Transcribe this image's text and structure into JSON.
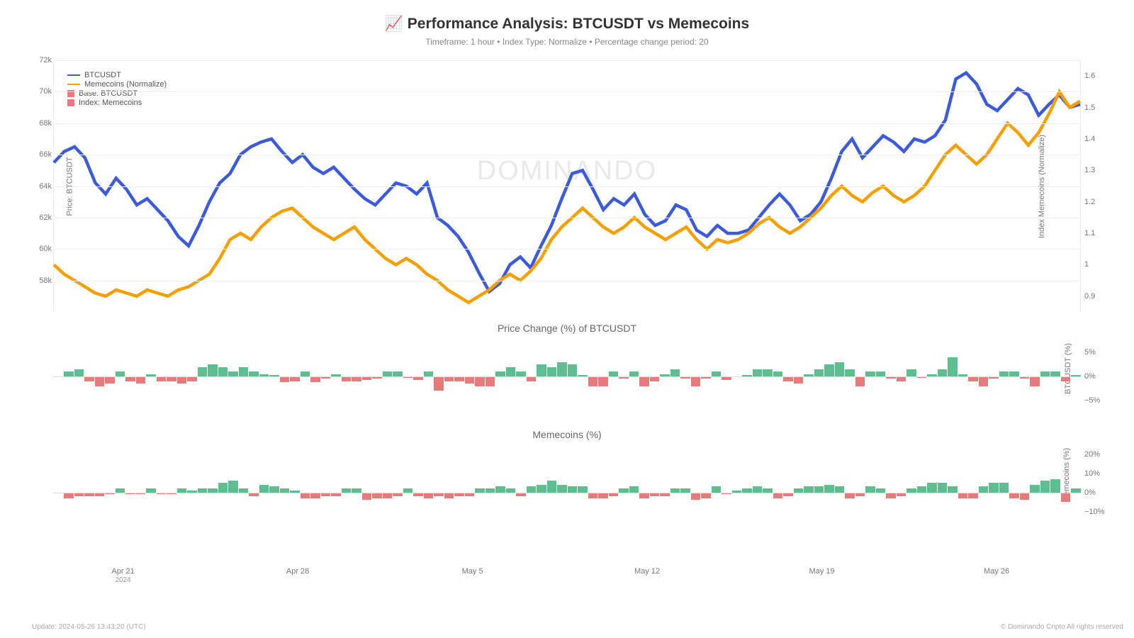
{
  "title": "📈 Performance Analysis: BTCUSDT vs Memecoins",
  "subtitle": "Timeframe: 1 hour  •  Index Type: Normalize  •  Percentage change period: 20",
  "watermark": "DOMINANDO",
  "colors": {
    "btc_line": "#3b5bdb",
    "meme_line": "#f59f00",
    "positive_bar": "#5cbf8f",
    "negative_bar": "#e77a7a",
    "grid": "#f0f0f0",
    "text": "#666666",
    "background": "#ffffff"
  },
  "main_chart": {
    "type": "line",
    "y_left": {
      "label": "Price: BTCUSDT",
      "min": 56000,
      "max": 72000,
      "ticks": [
        58000,
        60000,
        62000,
        64000,
        66000,
        68000,
        70000,
        72000
      ],
      "tick_labels": [
        "58k",
        "60k",
        "62k",
        "64k",
        "66k",
        "68k",
        "70k",
        "72k"
      ]
    },
    "y_right": {
      "label": "Index Memecoins (Normalize)",
      "min": 0.85,
      "max": 1.65,
      "ticks": [
        0.9,
        1,
        1.1,
        1.2,
        1.3,
        1.4,
        1.5,
        1.6
      ],
      "tick_labels": [
        "0.9",
        "1",
        "1.1",
        "1.2",
        "1.3",
        "1.4",
        "1.5",
        "1.6"
      ]
    },
    "legend": [
      {
        "type": "line",
        "color": "#3b5bdb",
        "label": "BTCUSDT"
      },
      {
        "type": "line",
        "color": "#f59f00",
        "label": "Memecoins (Normalize)"
      },
      {
        "type": "box",
        "color": "#e77a7a",
        "label": "Base: BTCUSDT"
      },
      {
        "type": "box",
        "color": "#e77a7a",
        "label": "Index: Memecoins"
      }
    ],
    "btc_series": [
      65500,
      66200,
      66500,
      65800,
      64200,
      63500,
      64500,
      63800,
      62800,
      63200,
      62500,
      61800,
      60800,
      60200,
      61500,
      63000,
      64200,
      64800,
      66000,
      66500,
      66800,
      67000,
      66200,
      65500,
      66000,
      65200,
      64800,
      65200,
      64500,
      63800,
      63200,
      62800,
      63500,
      64200,
      64000,
      63500,
      64200,
      62000,
      61500,
      60800,
      59800,
      58500,
      57300,
      57800,
      59000,
      59500,
      58800,
      60200,
      61500,
      63200,
      64800,
      65000,
      63800,
      62500,
      63200,
      62800,
      63500,
      62200,
      61500,
      61800,
      62800,
      62500,
      61200,
      60800,
      61500,
      61000,
      61000,
      61200,
      62000,
      62800,
      63500,
      62800,
      61800,
      62200,
      63000,
      64500,
      66200,
      67000,
      65800,
      66500,
      67200,
      66800,
      66200,
      67000,
      66800,
      67200,
      68200,
      70800,
      71200,
      70500,
      69200,
      68800,
      69500,
      70200,
      69800,
      68500,
      69200,
      69800,
      69000,
      69200
    ],
    "meme_series": [
      1.0,
      0.97,
      0.95,
      0.93,
      0.91,
      0.9,
      0.92,
      0.91,
      0.9,
      0.92,
      0.91,
      0.9,
      0.92,
      0.93,
      0.95,
      0.97,
      1.02,
      1.08,
      1.1,
      1.08,
      1.12,
      1.15,
      1.17,
      1.18,
      1.15,
      1.12,
      1.1,
      1.08,
      1.1,
      1.12,
      1.08,
      1.05,
      1.02,
      1.0,
      1.02,
      1.0,
      0.97,
      0.95,
      0.92,
      0.9,
      0.88,
      0.9,
      0.92,
      0.95,
      0.97,
      0.95,
      0.98,
      1.02,
      1.08,
      1.12,
      1.15,
      1.18,
      1.15,
      1.12,
      1.1,
      1.12,
      1.15,
      1.12,
      1.1,
      1.08,
      1.1,
      1.12,
      1.08,
      1.05,
      1.08,
      1.07,
      1.08,
      1.1,
      1.13,
      1.15,
      1.12,
      1.1,
      1.12,
      1.15,
      1.18,
      1.22,
      1.25,
      1.22,
      1.2,
      1.23,
      1.25,
      1.22,
      1.2,
      1.22,
      1.25,
      1.3,
      1.35,
      1.38,
      1.35,
      1.32,
      1.35,
      1.4,
      1.45,
      1.42,
      1.38,
      1.42,
      1.48,
      1.55,
      1.5,
      1.52
    ]
  },
  "pct_chart_btc": {
    "title": "Price Change (%) of BTCUSDT",
    "y_label": "BTCUSDT (%)",
    "y_min": -8,
    "y_max": 8,
    "y_ticks": [
      -5,
      0,
      5
    ],
    "y_tick_labels": [
      "−5%",
      "0%",
      "5%"
    ],
    "values": [
      0,
      1,
      1.5,
      -1,
      -2,
      -1.5,
      1,
      -1,
      -1.5,
      0.5,
      -1,
      -1,
      -1.5,
      -1,
      2,
      2.5,
      2,
      1,
      2,
      1,
      0.5,
      0.3,
      -1.2,
      -1,
      1,
      -1.2,
      -0.5,
      0.5,
      -1,
      -1,
      -0.8,
      -0.5,
      1,
      1,
      -0.3,
      -0.8,
      1,
      -3,
      -1,
      -1,
      -1.5,
      -2,
      -2,
      1,
      2,
      1,
      -1,
      2.5,
      2,
      3,
      2.5,
      0.3,
      -2,
      -2,
      1,
      -0.5,
      1,
      -2,
      -1,
      0.5,
      1.5,
      -0.5,
      -2,
      -0.5,
      1,
      -0.8,
      0,
      0.3,
      1.5,
      1.5,
      1,
      -1,
      -1.5,
      0.5,
      1.5,
      2.5,
      3,
      1.5,
      -2,
      1,
      1,
      -0.5,
      -1,
      1.5,
      -0.3,
      0.5,
      1.5,
      4,
      0.5,
      -1,
      -2,
      -0.5,
      1,
      1,
      -0.5,
      -2,
      1,
      1,
      -1,
      0.3
    ]
  },
  "pct_chart_meme": {
    "title": "Memecoins (%)",
    "y_label": "Memecoins (%)",
    "y_min": -15,
    "y_max": 25,
    "y_ticks": [
      -10,
      0,
      10,
      20
    ],
    "y_tick_labels": [
      "−10%",
      "0%",
      "10%",
      "20%"
    ],
    "values": [
      0,
      -3,
      -2,
      -2,
      -2,
      -1,
      2,
      -1,
      -1,
      2,
      -1,
      -1,
      2,
      1,
      2,
      2,
      5,
      6,
      2,
      -2,
      4,
      3,
      2,
      1,
      -3,
      -3,
      -2,
      -2,
      2,
      2,
      -4,
      -3,
      -3,
      -2,
      2,
      -2,
      -3,
      -2,
      -3,
      -2,
      -2,
      2,
      2,
      3,
      2,
      -2,
      3,
      4,
      6,
      4,
      3,
      3,
      -3,
      -3,
      -2,
      2,
      3,
      -3,
      -2,
      -2,
      2,
      2,
      -4,
      -3,
      3,
      -1,
      1,
      2,
      3,
      2,
      -3,
      -2,
      2,
      3,
      3,
      4,
      3,
      -3,
      -2,
      3,
      2,
      -3,
      -2,
      2,
      3,
      5,
      5,
      3,
      -3,
      -3,
      3,
      5,
      5,
      -3,
      -4,
      4,
      6,
      7,
      -5,
      2
    ]
  },
  "x_axis": {
    "ticks": [
      {
        "pos": 0.068,
        "label": "Apr 21",
        "year": "2024"
      },
      {
        "pos": 0.238,
        "label": "Apr 28"
      },
      {
        "pos": 0.408,
        "label": "May 5"
      },
      {
        "pos": 0.578,
        "label": "May 12"
      },
      {
        "pos": 0.748,
        "label": "May 19"
      },
      {
        "pos": 0.918,
        "label": "May 26"
      }
    ]
  },
  "footer": {
    "left": "Update: 2024-05-26 13:43:20 (UTC)",
    "right": "© Dominando Cripto All rights reserved"
  }
}
